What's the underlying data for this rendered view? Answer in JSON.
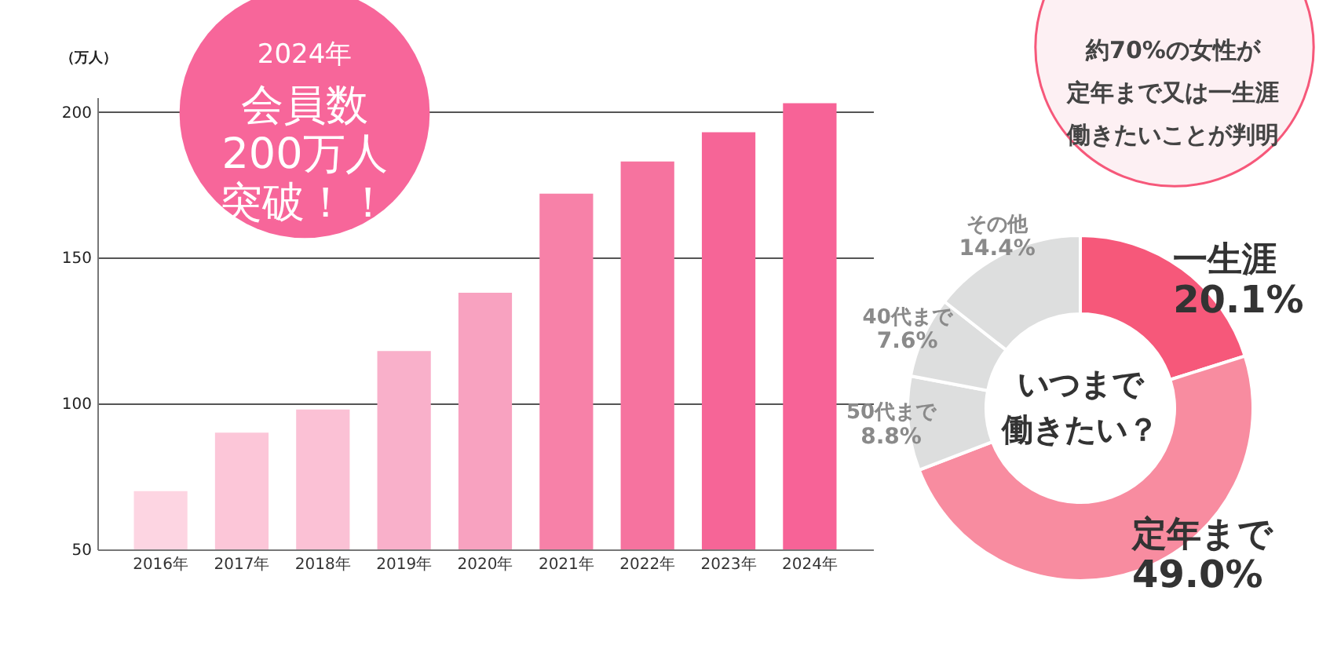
{
  "chart_data": [
    {
      "type": "bar",
      "ylabel": "（万人）",
      "categories": [
        "2016年",
        "2017年",
        "2018年",
        "2019年",
        "2020年",
        "2021年",
        "2022年",
        "2023年",
        "2024年"
      ],
      "values": [
        70,
        90,
        98,
        118,
        138,
        172,
        183,
        193,
        203
      ],
      "colors": [
        "#fdd5e2",
        "#fcc6d8",
        "#fbc1d5",
        "#f9b0ca",
        "#f8a2c0",
        "#f781a8",
        "#f6739f",
        "#f66597",
        "#f76397"
      ],
      "ylim": [
        50,
        205
      ],
      "yticks": [
        50,
        100,
        150,
        200
      ],
      "grid": "y",
      "annotations": [
        "2024年",
        "会員数200万人突破！！"
      ]
    },
    {
      "type": "donut",
      "categories": [
        "一生涯",
        "定年まで",
        "50代まで",
        "40代まで",
        "その他"
      ],
      "values": [
        20.1,
        49.0,
        8.8,
        7.6,
        14.4
      ],
      "colors": [
        "#f6587a",
        "#f88ca0",
        "#dddede",
        "#dddede",
        "#dddede"
      ],
      "value_labels": [
        "20.1%",
        "49.0%",
        "8.8%",
        "7.6%",
        "14.4%"
      ],
      "annotations": [
        "約70%の女性が定年まで又は一生涯働きたいことが判明",
        "いつまで働きたい？"
      ]
    }
  ]
}
